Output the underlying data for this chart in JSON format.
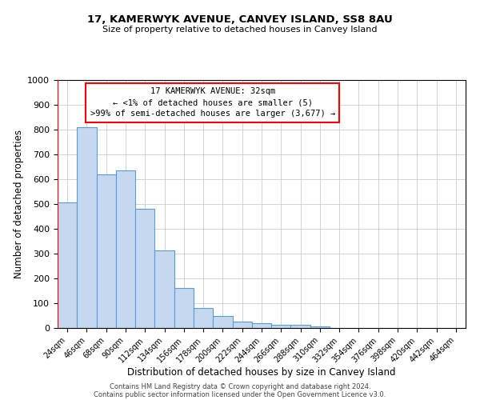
{
  "title": "17, KAMERWYK AVENUE, CANVEY ISLAND, SS8 8AU",
  "subtitle": "Size of property relative to detached houses in Canvey Island",
  "xlabel": "Distribution of detached houses by size in Canvey Island",
  "ylabel": "Number of detached properties",
  "bar_color": "#c5d8f0",
  "bar_edge_color": "#5b9bd5",
  "bin_labels": [
    "24sqm",
    "46sqm",
    "68sqm",
    "90sqm",
    "112sqm",
    "134sqm",
    "156sqm",
    "178sqm",
    "200sqm",
    "222sqm",
    "244sqm",
    "266sqm",
    "288sqm",
    "310sqm",
    "332sqm",
    "354sqm",
    "376sqm",
    "398sqm",
    "420sqm",
    "442sqm",
    "464sqm"
  ],
  "bar_heights": [
    505,
    810,
    620,
    635,
    480,
    313,
    162,
    80,
    48,
    25,
    20,
    12,
    12,
    7,
    0,
    0,
    0,
    0,
    0,
    0,
    0
  ],
  "ylim": [
    0,
    1000
  ],
  "yticks": [
    0,
    100,
    200,
    300,
    400,
    500,
    600,
    700,
    800,
    900,
    1000
  ],
  "annotation_box_text": "17 KAMERWYK AVENUE: 32sqm\n← <1% of detached houses are smaller (5)\n>99% of semi-detached houses are larger (3,677) →",
  "footer_line1": "Contains HM Land Registry data © Crown copyright and database right 2024.",
  "footer_line2": "Contains public sector information licensed under the Open Government Licence v3.0.",
  "background_color": "#ffffff",
  "grid_color": "#cccccc"
}
